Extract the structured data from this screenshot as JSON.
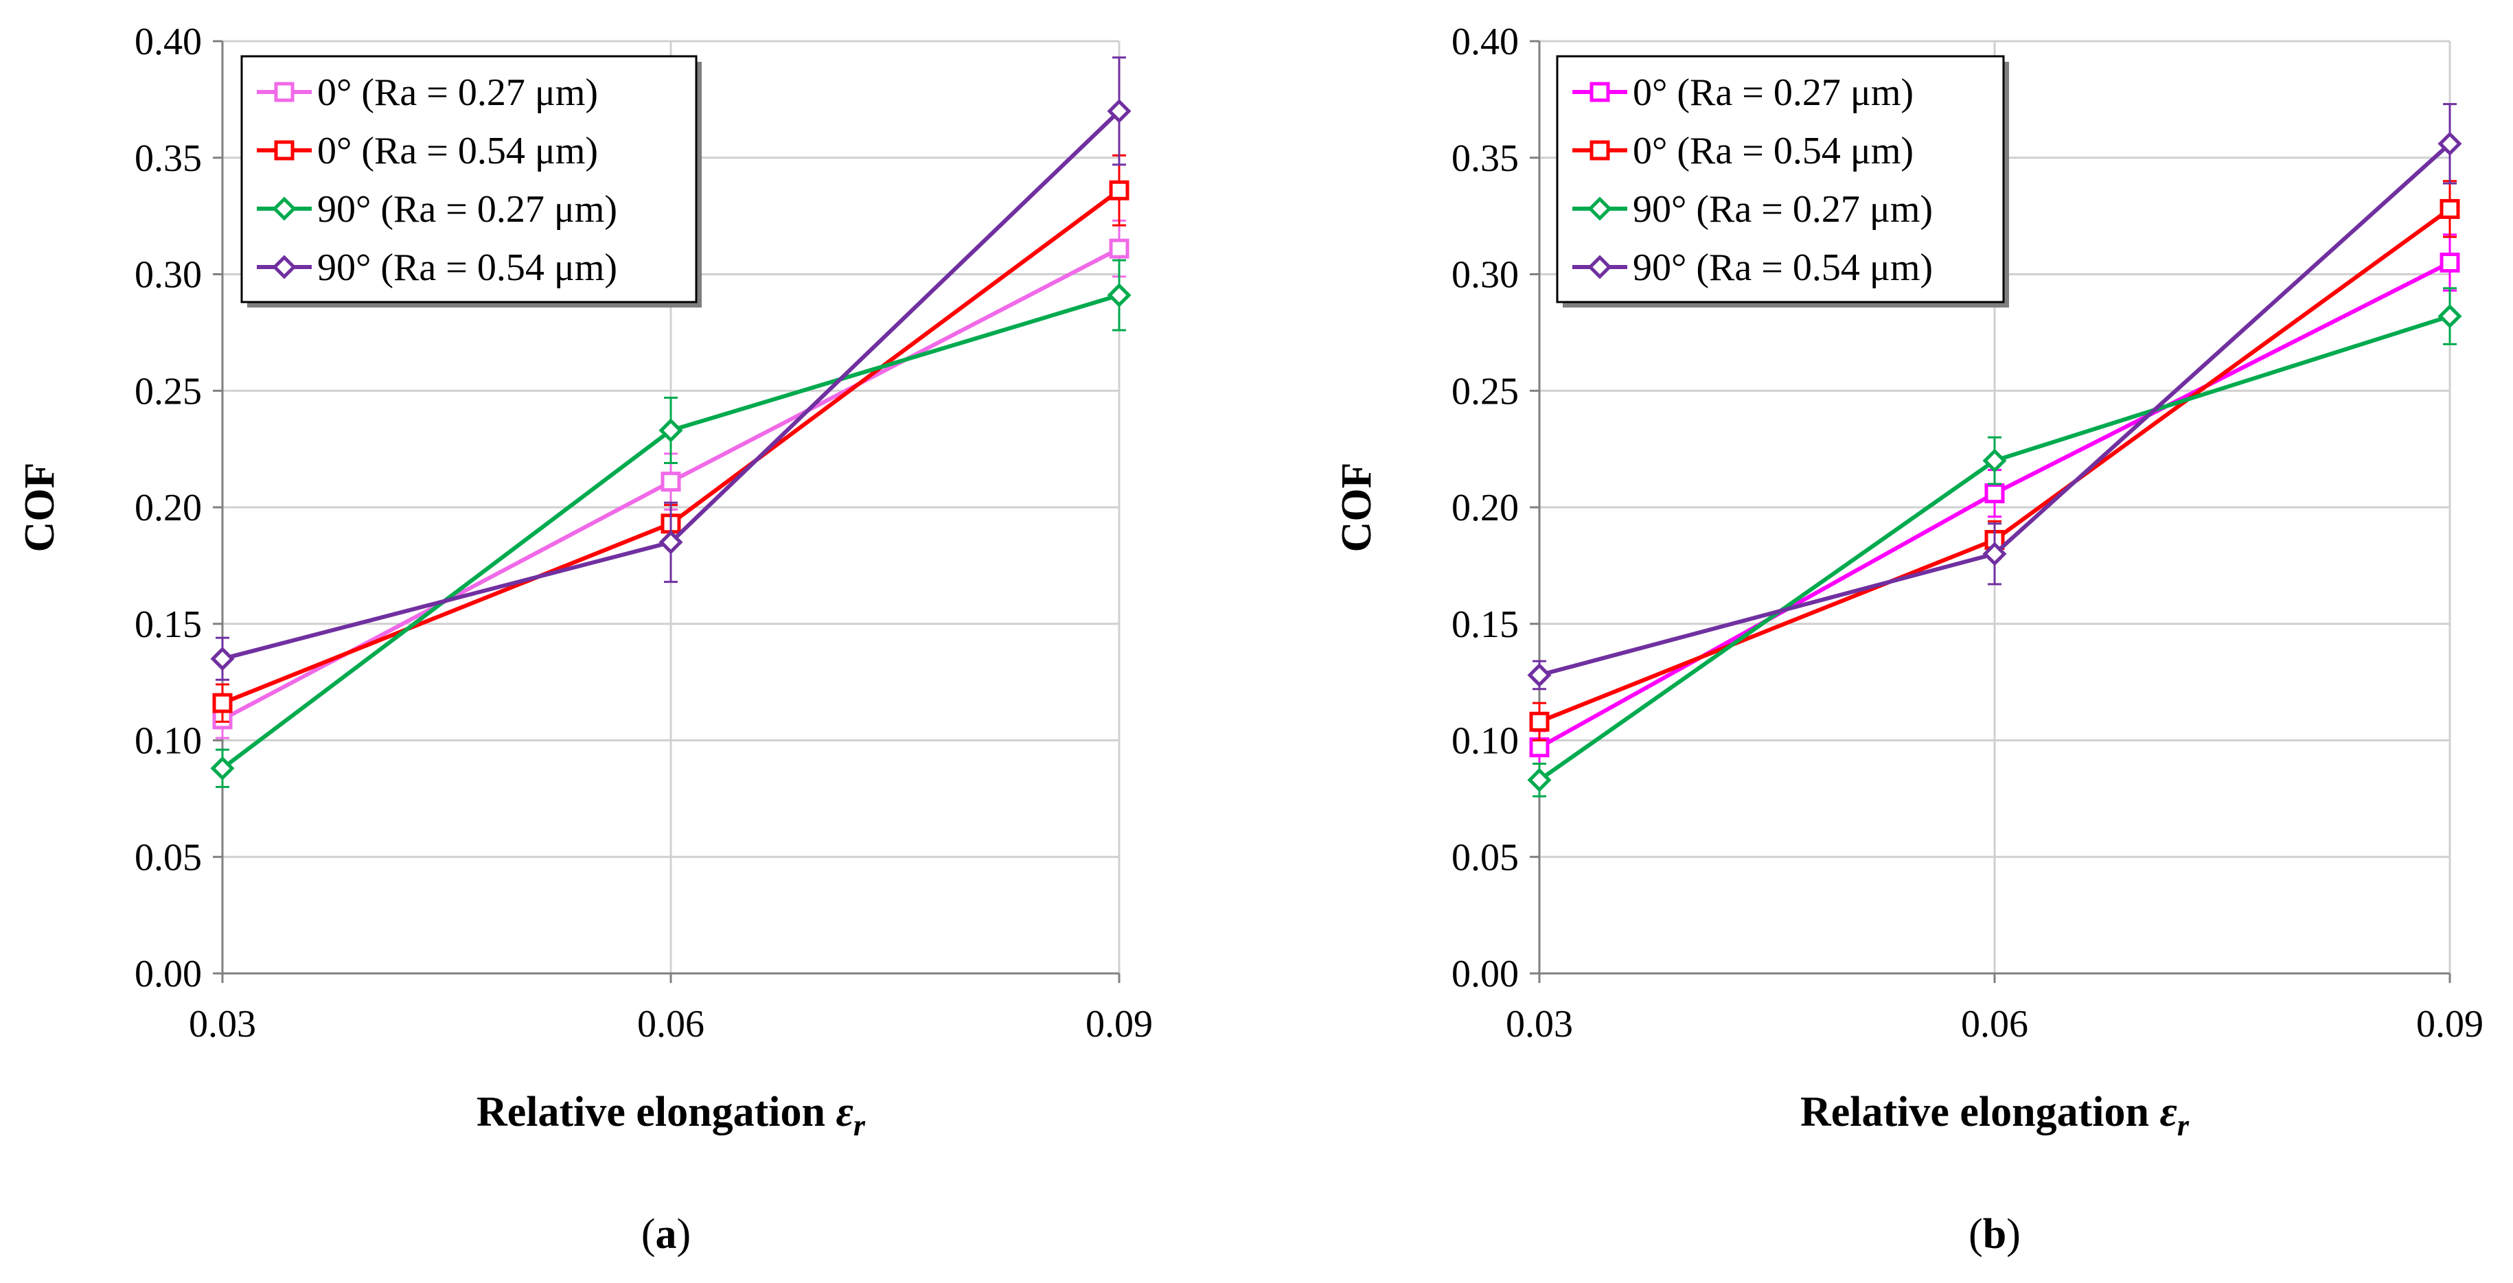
{
  "chart_data": [
    {
      "type": "line",
      "panel_label": "(a)",
      "panel_letter": "a",
      "xlabel": "Relative elongation ",
      "xlabel_symbol": "ε",
      "xlabel_subscript": "r",
      "ylabel": "COF",
      "categories": [
        "0.03",
        "0.06",
        "0.09"
      ],
      "ylim": [
        0,
        0.4
      ],
      "yticks": [
        "0.00",
        "0.05",
        "0.10",
        "0.15",
        "0.20",
        "0.25",
        "0.30",
        "0.35",
        "0.40"
      ],
      "grid": true,
      "legend_position": "top-left",
      "series": [
        {
          "name": "0° (Ra = 0.27 μm)",
          "marker": "square",
          "color": "#f06ae8",
          "values": [
            0.109,
            0.211,
            0.311
          ],
          "errors": [
            0.008,
            0.012,
            0.012
          ]
        },
        {
          "name": "0° (Ra = 0.54 μm)",
          "marker": "square",
          "color": "#ff0000",
          "values": [
            0.116,
            0.193,
            0.336
          ],
          "errors": [
            0.008,
            0.008,
            0.015
          ]
        },
        {
          "name": "90° (Ra = 0.27 μm)",
          "marker": "diamond",
          "color": "#00aa4e",
          "values": [
            0.088,
            0.233,
            0.291
          ],
          "errors": [
            0.008,
            0.014,
            0.015
          ]
        },
        {
          "name": "90° (Ra = 0.54 μm)",
          "marker": "diamond",
          "color": "#7030a0",
          "values": [
            0.135,
            0.185,
            0.37
          ],
          "errors": [
            0.009,
            0.017,
            0.023
          ]
        }
      ]
    },
    {
      "type": "line",
      "panel_label": "(b)",
      "panel_letter": "b",
      "xlabel": "Relative elongation ",
      "xlabel_symbol": "ε",
      "xlabel_subscript": "r",
      "ylabel": "COF",
      "categories": [
        "0.03",
        "0.06",
        "0.09"
      ],
      "ylim": [
        0,
        0.4
      ],
      "yticks": [
        "0.00",
        "0.05",
        "0.10",
        "0.15",
        "0.20",
        "0.25",
        "0.30",
        "0.35",
        "0.40"
      ],
      "grid": true,
      "legend_position": "top-left",
      "series": [
        {
          "name": "0° (Ra = 0.27 μm)",
          "marker": "square",
          "color": "#ff00ff",
          "values": [
            0.097,
            0.206,
            0.305
          ],
          "errors": [
            0.007,
            0.01,
            0.012
          ]
        },
        {
          "name": "0° (Ra = 0.54 μm)",
          "marker": "square",
          "color": "#ff0000",
          "values": [
            0.108,
            0.186,
            0.328
          ],
          "errors": [
            0.008,
            0.008,
            0.012
          ]
        },
        {
          "name": "90° (Ra = 0.27 μm)",
          "marker": "diamond",
          "color": "#00aa4e",
          "values": [
            0.083,
            0.22,
            0.282
          ],
          "errors": [
            0.007,
            0.01,
            0.012
          ]
        },
        {
          "name": "90° (Ra = 0.54 μm)",
          "marker": "diamond",
          "color": "#7030a0",
          "values": [
            0.128,
            0.18,
            0.356
          ],
          "errors": [
            0.006,
            0.013,
            0.017
          ]
        }
      ]
    }
  ]
}
